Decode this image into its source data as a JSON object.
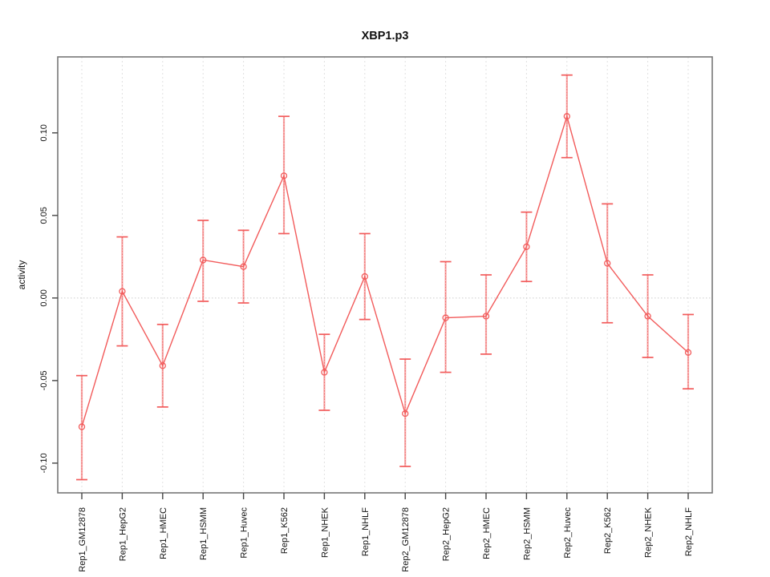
{
  "window": {
    "background": "#ffffff"
  },
  "chart_data": {
    "type": "line",
    "title": "XBP1.p3",
    "xlabel": "",
    "ylabel": "activity",
    "categories": [
      "Rep1_GM12878",
      "Rep1_HepG2",
      "Rep1_HMEC",
      "Rep1_HSMM",
      "Rep1_Huvec",
      "Rep1_K562",
      "Rep1_NHEK",
      "Rep1_NHLF",
      "Rep2_GM12878",
      "Rep2_HepG2",
      "Rep2_HMEC",
      "Rep2_HSMM",
      "Rep2_Huvec",
      "Rep2_K562",
      "Rep2_NHEK",
      "Rep2_NHLF"
    ],
    "series": [
      {
        "name": "activity",
        "marker": "open-circle",
        "values": [
          -0.078,
          0.004,
          -0.041,
          0.023,
          0.019,
          0.074,
          -0.045,
          0.013,
          -0.07,
          -0.012,
          -0.011,
          0.031,
          0.11,
          0.021,
          -0.011,
          -0.033
        ],
        "error_low": [
          -0.11,
          -0.029,
          -0.066,
          -0.002,
          -0.003,
          0.039,
          -0.068,
          -0.013,
          -0.102,
          -0.045,
          -0.034,
          0.01,
          0.085,
          -0.015,
          -0.036,
          -0.055
        ],
        "error_high": [
          -0.047,
          0.037,
          -0.016,
          0.047,
          0.041,
          0.11,
          -0.022,
          0.039,
          -0.037,
          0.022,
          0.014,
          0.052,
          0.135,
          0.057,
          0.014,
          -0.01
        ]
      }
    ],
    "yticks": [
      -0.1,
      -0.05,
      0.0,
      0.05,
      0.1
    ],
    "ytick_labels": [
      "-0.10",
      "-0.05",
      "0.00",
      "0.05",
      "0.10"
    ],
    "ylim": [
      -0.118,
      0.146
    ],
    "grid": "vertical dotted gridline at each category; horizontal dotted line at y=0",
    "legend": "none",
    "x_label_rotation": -90,
    "y_label_rotation": -90,
    "colors": {
      "series": "#f25b5b",
      "error_bar_fill": "rgba(243,100,100,0.55)",
      "error_bar_cap": "#f25b5b",
      "gridline": "#e0e0e0",
      "zero_line": "#cccccc",
      "box": "#777777",
      "tick": "#444444",
      "text": "#111111"
    }
  }
}
